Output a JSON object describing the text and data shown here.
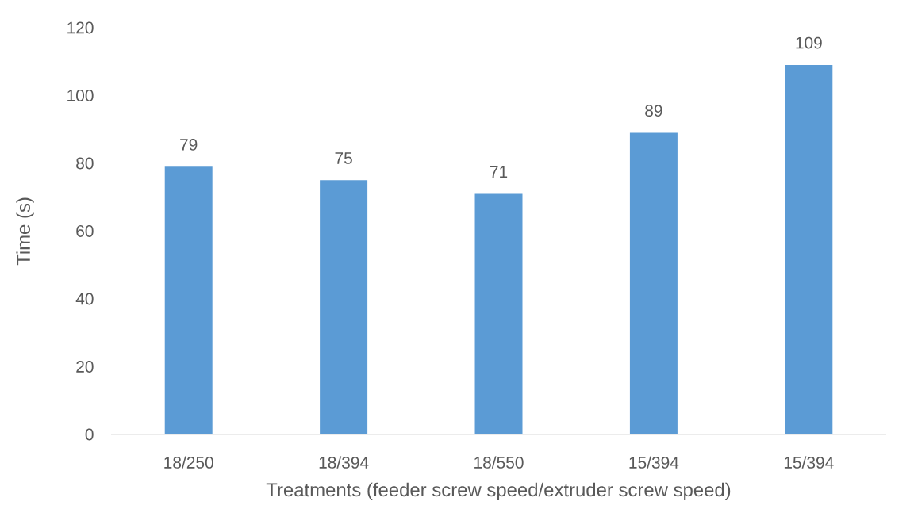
{
  "chart_data": {
    "type": "bar",
    "xlabel": "Treatments (feeder screw speed/extruder screw speed)",
    "ylabel": "Time (s)",
    "categories": [
      "18/250",
      "18/394",
      "18/550",
      "15/394",
      "15/394"
    ],
    "values": [
      79,
      75,
      71,
      89,
      109
    ],
    "color": "#5b9bd5",
    "ylim": [
      0,
      120
    ],
    "yticks": [
      0,
      20,
      40,
      60,
      80,
      100,
      120
    ],
    "data_labels": true
  }
}
